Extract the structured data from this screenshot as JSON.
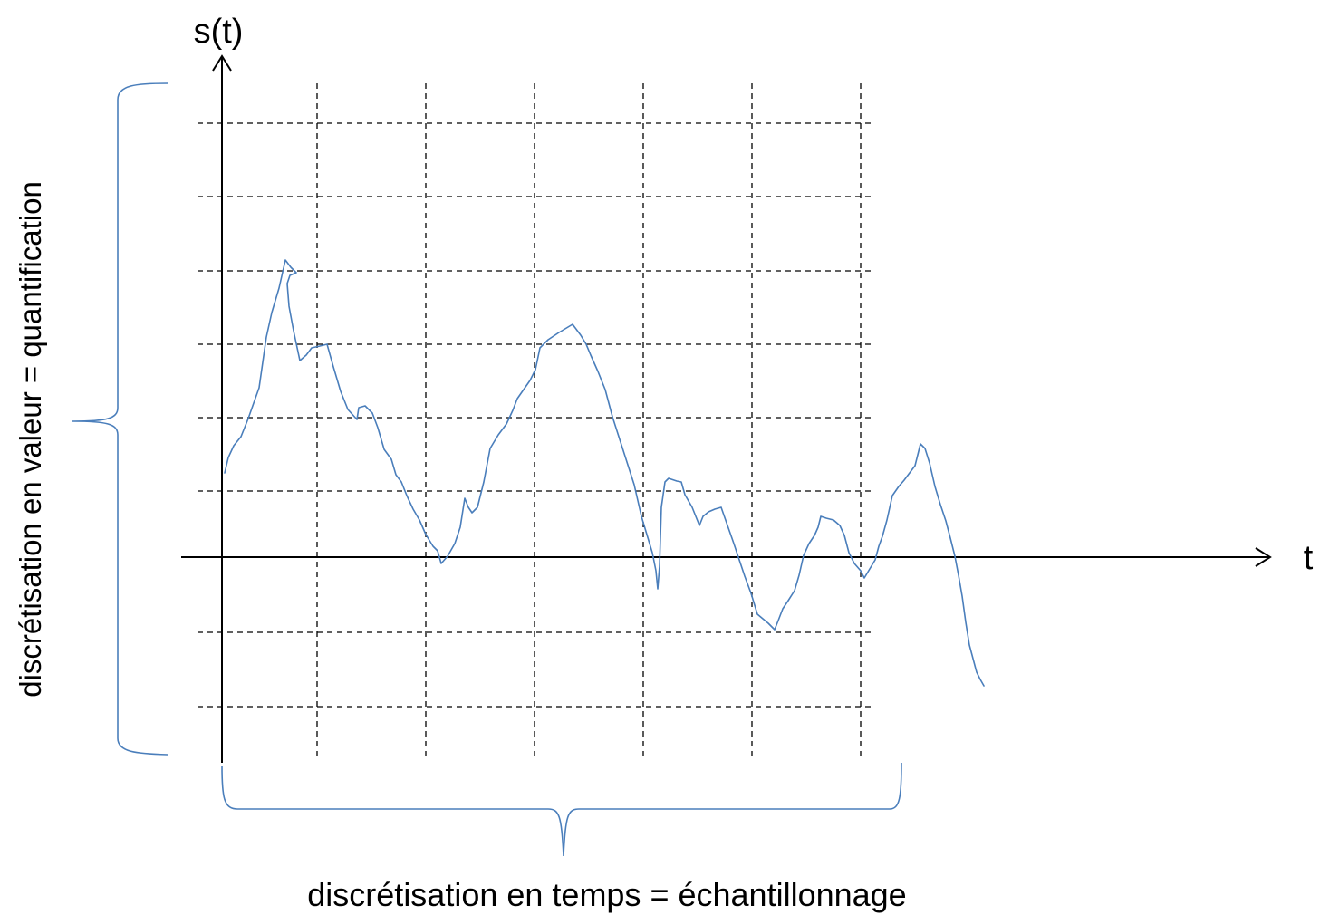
{
  "diagram": {
    "y_axis_label": "s(t)",
    "x_axis_label": "t",
    "vertical_brace_label": "discrétisation en valeur = quantification",
    "horizontal_brace_label": "discrétisation en temps = échantillonnage"
  },
  "colors": {
    "signal": "#4a7ebb",
    "braces": "#4a7ebb",
    "axes": "#000000",
    "grid": "#000000"
  }
}
